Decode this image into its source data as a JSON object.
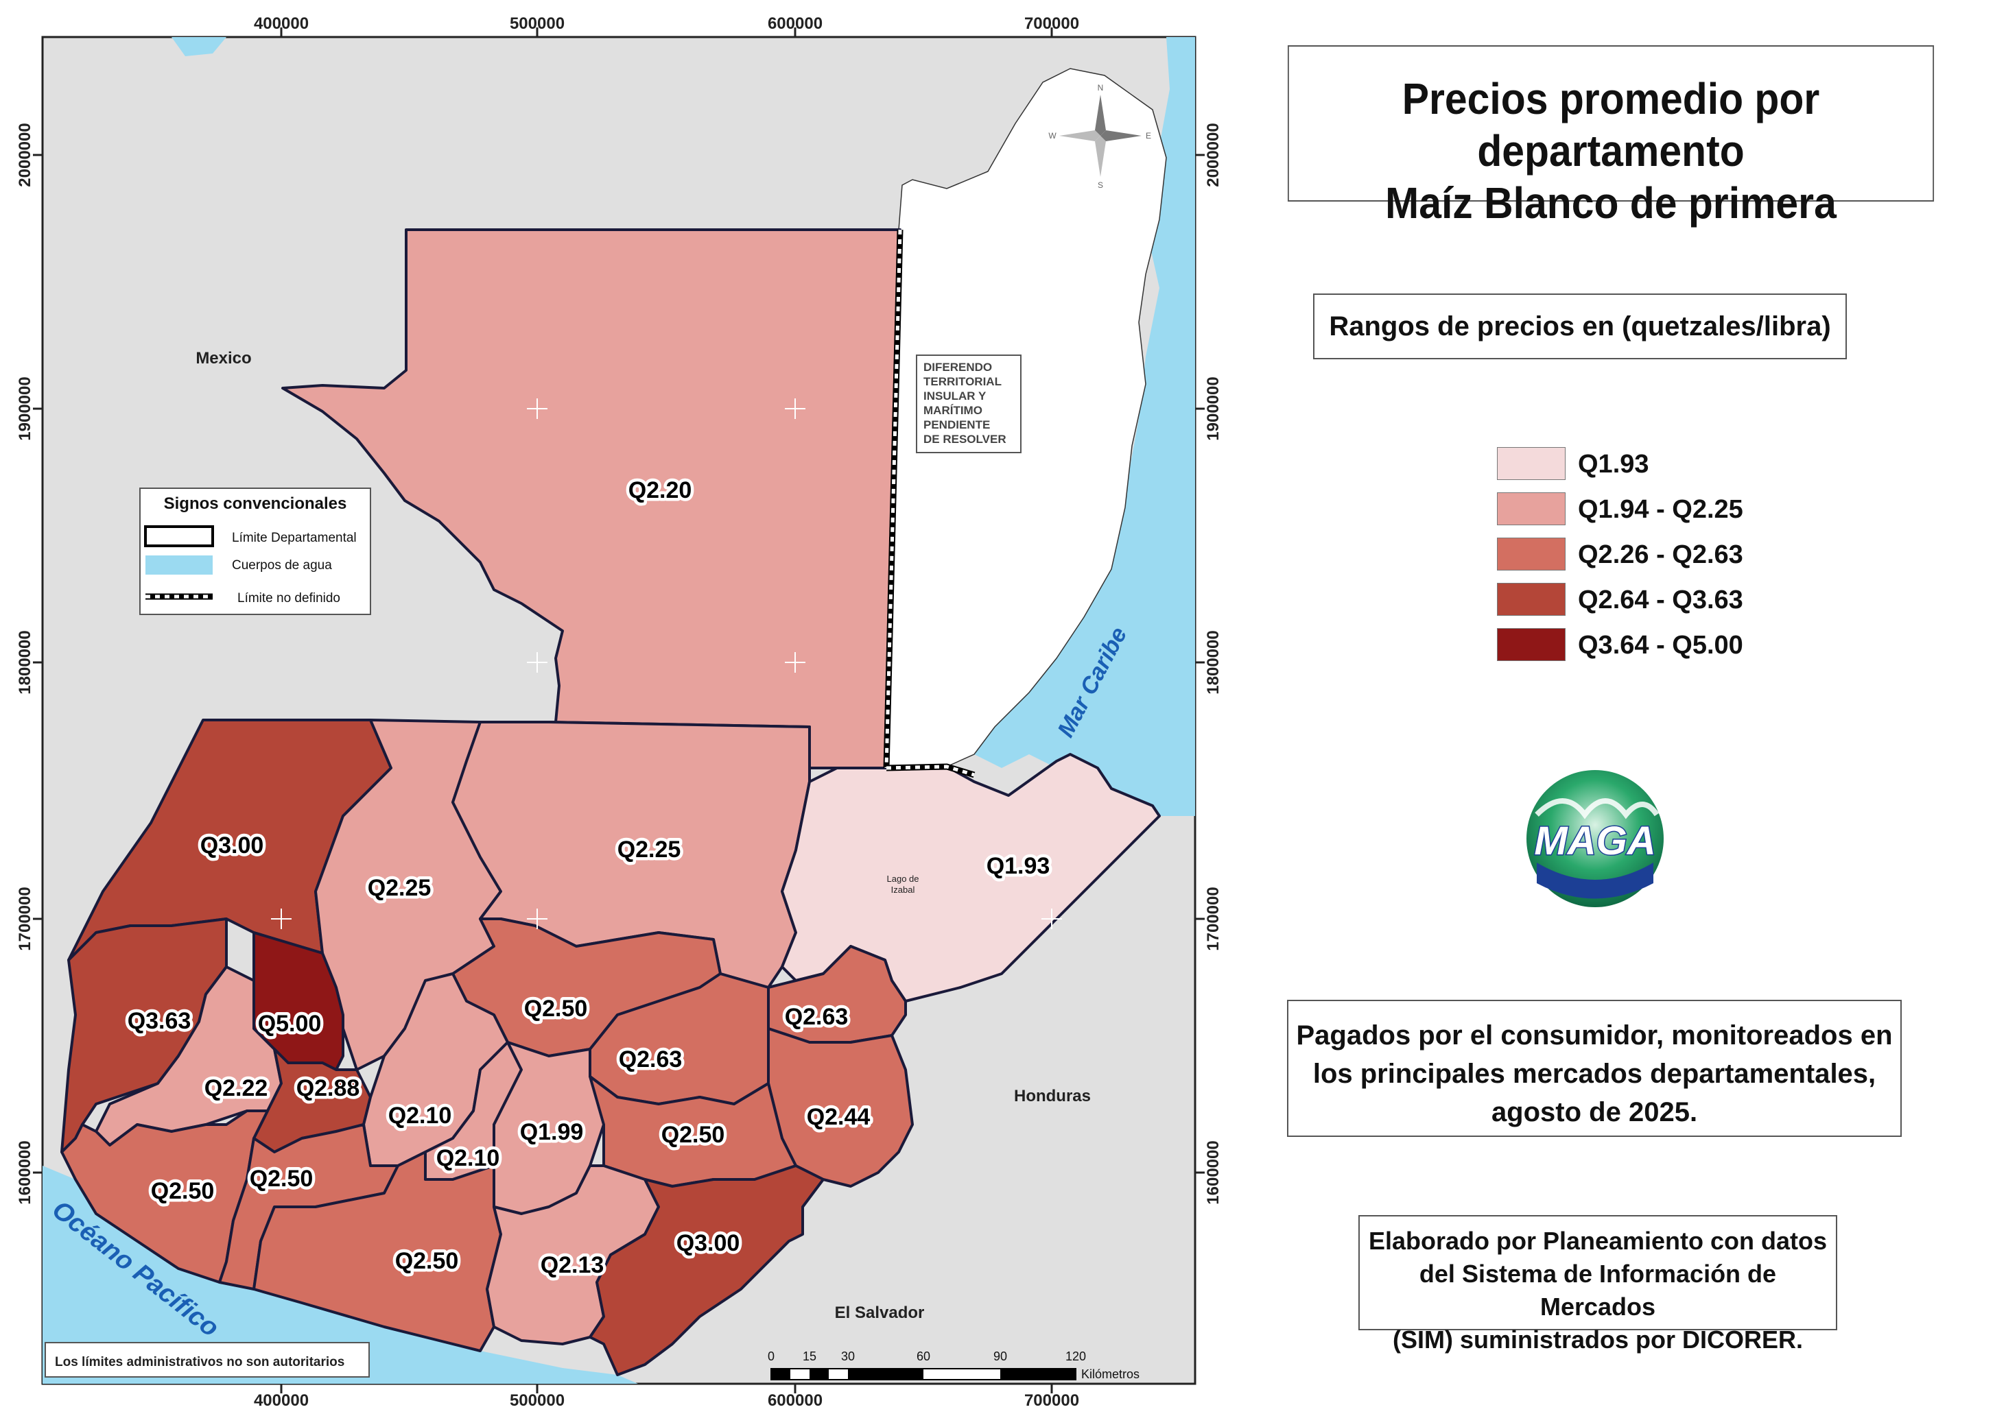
{
  "title": {
    "line1": "Precios promedio por departamento",
    "line2": "Maíz Blanco de primera"
  },
  "range_title": "Rangos de precios en (quetzales/libra)",
  "legend": [
    {
      "label": "Q1.93",
      "color": "#f4dadb"
    },
    {
      "label": "Q1.94 - Q2.25",
      "color": "#e7a29d"
    },
    {
      "label": "Q2.26 - Q2.63",
      "color": "#d36f61"
    },
    {
      "label": "Q2.64 - Q3.63",
      "color": "#b44638"
    },
    {
      "label": "Q3.64 - Q5.00",
      "color": "#8f1717"
    }
  ],
  "note": {
    "line1": "Pagados por el consumidor, monitoreados en",
    "line2": "los principales mercados departamentales,",
    "line3": "agosto de 2025."
  },
  "credit": {
    "line1": "Elaborado por Planeamiento con datos",
    "line2": "del Sistema de Información de Mercados",
    "line3": "(SIM) suministrados por DICORER."
  },
  "logo_text": "MAGA",
  "map": {
    "x_ticks": [
      "400000",
      "500000",
      "600000",
      "700000"
    ],
    "y_ticks": [
      "2000000",
      "1900000",
      "1800000",
      "1700000",
      "1600000"
    ],
    "countries": {
      "mexico": "Mexico",
      "honduras": "Honduras",
      "el_salvador": "El Salvador"
    },
    "water": {
      "pacific": "Océano Pacífico",
      "caribbean": "Mar Caribe",
      "lake": "Lago de Izabal",
      "lake_line1": "Lago de",
      "lake_line2": "Izabal"
    },
    "dispute": [
      "DIFERENDO",
      "TERRITORIAL",
      "INSULAR Y",
      "MARÍTIMO",
      "PENDIENTE",
      "DE RESOLVER"
    ],
    "compass": {
      "n": "N",
      "s": "S",
      "e": "E",
      "w": "W"
    },
    "disclaimer": "Los límites administrativos no son autoritarios",
    "scale": {
      "ticks": [
        "0",
        "15",
        "30",
        "60",
        "90",
        "120"
      ],
      "unit": "Kilómetros"
    },
    "signs": {
      "title": "Signos convencionales",
      "items": [
        "Límite Departamental",
        "Cuerpos de agua",
        "Límite no definido"
      ],
      "colors": {
        "water": "#9bdaf1"
      }
    },
    "colors": {
      "background": "#e0e0e0",
      "water": "#9bdaf1",
      "border": "#1a1a3a"
    },
    "departments": [
      {
        "label": "Q2.20",
        "range": 1
      },
      {
        "label": "Q2.25",
        "range": 1
      },
      {
        "label": "Q2.25",
        "range": 1
      },
      {
        "label": "Q1.93",
        "range": 0
      },
      {
        "label": "Q3.00",
        "range": 3
      },
      {
        "label": "Q3.63",
        "range": 3
      },
      {
        "label": "Q5.00",
        "range": 4
      },
      {
        "label": "Q2.22",
        "range": 1
      },
      {
        "label": "Q2.88",
        "range": 3
      },
      {
        "label": "Q2.50",
        "range": 2
      },
      {
        "label": "Q2.63",
        "range": 2
      },
      {
        "label": "Q2.63",
        "range": 2
      },
      {
        "label": "Q2.10",
        "range": 1
      },
      {
        "label": "Q2.10",
        "range": 1
      },
      {
        "label": "Q1.99",
        "range": 1
      },
      {
        "label": "Q2.50",
        "range": 2
      },
      {
        "label": "Q2.44",
        "range": 2
      },
      {
        "label": "Q2.50",
        "range": 2
      },
      {
        "label": "Q2.50",
        "range": 2
      },
      {
        "label": "Q2.50",
        "range": 2
      },
      {
        "label": "Q2.13",
        "range": 1
      },
      {
        "label": "Q3.00",
        "range": 3
      }
    ]
  }
}
